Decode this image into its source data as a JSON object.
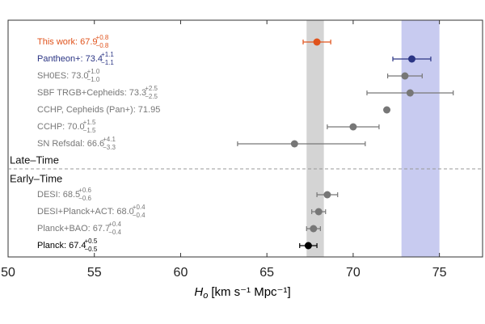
{
  "chart_data": {
    "type": "errorbar",
    "xlabel": {
      "main": "H",
      "sub": "o",
      "unit": "[km s⁻¹ Mpc⁻¹]"
    },
    "xlim": [
      50,
      77.5
    ],
    "xticks": [
      50,
      55,
      60,
      65,
      70,
      75
    ],
    "sections": [
      "Late–Time",
      "Early–Time"
    ],
    "bands": [
      {
        "range": [
          67.3,
          68.3
        ],
        "color": "#d4d4d4"
      },
      {
        "range": [
          72.8,
          75.0
        ],
        "color": "#c8cbf0"
      }
    ],
    "rows": [
      {
        "name": "This work:",
        "color": "#e0531c",
        "value": 67.9,
        "value_label": "67.9",
        "err_plus": 0.8,
        "err_plus_label": "+0.8",
        "err_minus": 0.8,
        "err_minus_label": "−0.8",
        "section": 0
      },
      {
        "name": "Pantheon+:",
        "color": "#2b3584",
        "value": 73.4,
        "value_label": "73.4",
        "err_plus": 1.1,
        "err_plus_label": "+1.1",
        "err_minus": 1.1,
        "err_minus_label": "−1.1",
        "section": 0
      },
      {
        "name": "SH0ES:",
        "color": "#777777",
        "value": 73.0,
        "value_label": "73.0",
        "err_plus": 1.0,
        "err_plus_label": "+1.0",
        "err_minus": 1.0,
        "err_minus_label": "−1.0",
        "section": 0
      },
      {
        "name": "SBF TRGB+Cepheids:",
        "color": "#777777",
        "value": 73.3,
        "value_label": "73.3",
        "err_plus": 2.5,
        "err_plus_label": "+2.5",
        "err_minus": 2.5,
        "err_minus_label": "−2.5",
        "section": 0
      },
      {
        "name": "CCHP, Cepheids (Pan+):",
        "color": "#777777",
        "value": 71.95,
        "value_label": "71.95",
        "err_plus": null,
        "err_plus_label": null,
        "err_minus": null,
        "err_minus_label": null,
        "section": 0
      },
      {
        "name": "CCHP:",
        "color": "#777777",
        "value": 70.0,
        "value_label": "70.0",
        "err_plus": 1.5,
        "err_plus_label": "+1.5",
        "err_minus": 1.5,
        "err_minus_label": "−1.5",
        "section": 0
      },
      {
        "name": "SN Refsdal:",
        "color": "#777777",
        "value": 66.6,
        "value_label": "66.6",
        "err_plus": 4.1,
        "err_plus_label": "+4.1",
        "err_minus": 3.3,
        "err_minus_label": "−3.3",
        "section": 0
      },
      {
        "name": "DESI:",
        "color": "#777777",
        "value": 68.5,
        "value_label": "68.5",
        "err_plus": 0.6,
        "err_plus_label": "+0.6",
        "err_minus": 0.6,
        "err_minus_label": "−0.6",
        "section": 1
      },
      {
        "name": "DESI+Planck+ACT:",
        "color": "#777777",
        "value": 68.0,
        "value_label": "68.0",
        "err_plus": 0.4,
        "err_plus_label": "+0.4",
        "err_minus": 0.4,
        "err_minus_label": "−0.4",
        "section": 1
      },
      {
        "name": "Planck+BAO:",
        "color": "#777777",
        "value": 67.7,
        "value_label": "67.7",
        "err_plus": 0.4,
        "err_plus_label": "+0.4",
        "err_minus": 0.4,
        "err_minus_label": "−0.4",
        "section": 1
      },
      {
        "name": "Planck:",
        "color": "#000000",
        "value": 67.4,
        "value_label": "67.4",
        "err_plus": 0.5,
        "err_plus_label": "+0.5",
        "err_minus": 0.5,
        "err_minus_label": "−0.5",
        "section": 1
      }
    ]
  }
}
